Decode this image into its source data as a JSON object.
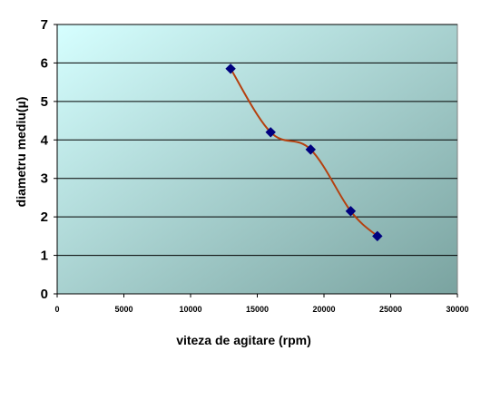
{
  "chart_data": {
    "type": "line",
    "title": "",
    "xlabel": "viteza de agitare (rpm)",
    "ylabel": "diametru mediu(µ)",
    "xlim": [
      0,
      30000
    ],
    "ylim": [
      0,
      7
    ],
    "x_ticks": [
      0,
      5000,
      10000,
      15000,
      20000,
      25000,
      30000
    ],
    "y_ticks": [
      0,
      1,
      2,
      3,
      4,
      5,
      6,
      7
    ],
    "grid": "horizontal",
    "legend": "none",
    "series": [
      {
        "x": [
          13000,
          16000,
          19000,
          22000,
          24000
        ],
        "y": [
          5.85,
          4.2,
          3.75,
          2.15,
          1.5
        ],
        "line_color": "#b5400f",
        "marker_color": "#00007f",
        "marker": "diamond",
        "smooth": true
      }
    ],
    "plot_background": {
      "gradient_from": "#d6ffff",
      "gradient_to": "#7aa3a0"
    }
  }
}
